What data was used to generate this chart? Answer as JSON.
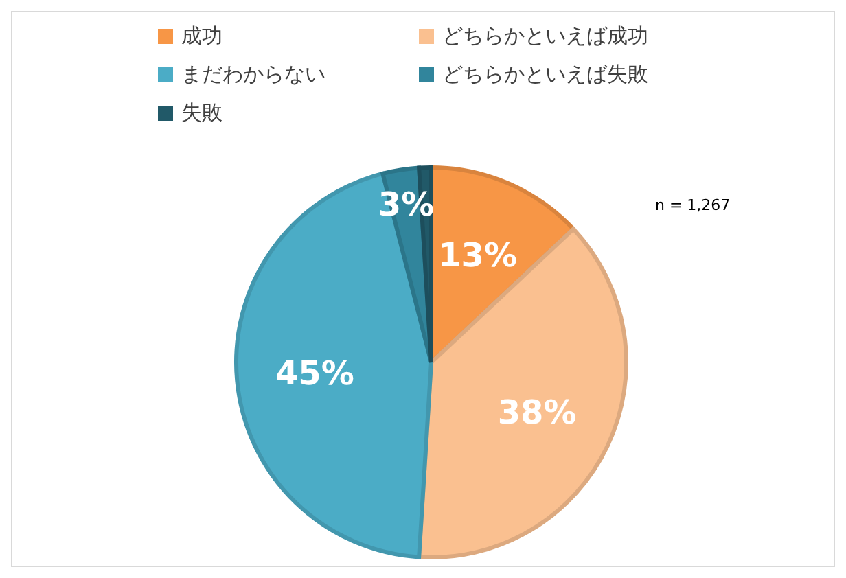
{
  "chart_data": {
    "type": "pie",
    "categories": [
      "成功",
      "どちらかといえば成功",
      "まだわからない",
      "どちらかといえば失敗",
      "失敗"
    ],
    "values": [
      13,
      38,
      45,
      3,
      1
    ],
    "value_labels": [
      "13%",
      "38%",
      "45%",
      "3%",
      null
    ],
    "colors": [
      "#f79646",
      "#fac090",
      "#4bacc6",
      "#31859c",
      "#215968"
    ],
    "legend": "top left",
    "annotations": [
      "n = 1,267"
    ]
  }
}
